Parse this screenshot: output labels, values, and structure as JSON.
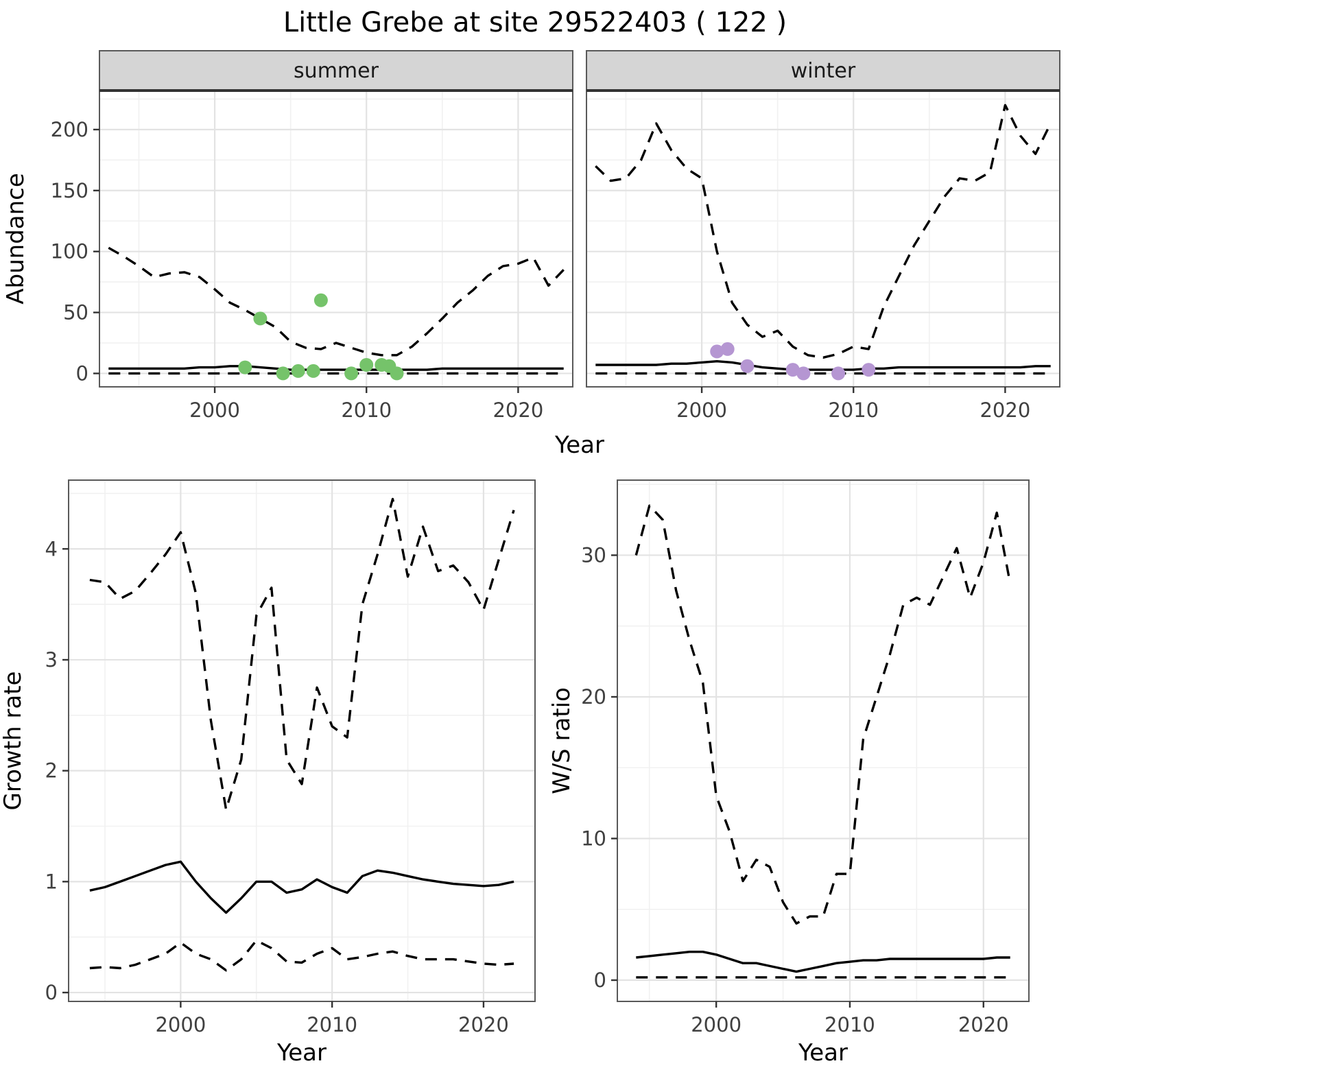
{
  "title": "Little Grebe at site 29522403 ( 122 )",
  "chart_data": [
    {
      "id": "abundance",
      "type": "line",
      "xlabel": "Year",
      "ylabel": "Abundance",
      "x": [
        1993,
        1994,
        1995,
        1996,
        1997,
        1998,
        1999,
        2000,
        2001,
        2002,
        2003,
        2004,
        2005,
        2006,
        2007,
        2008,
        2009,
        2010,
        2011,
        2012,
        2013,
        2014,
        2015,
        2016,
        2017,
        2018,
        2019,
        2020,
        2021,
        2022,
        2023
      ],
      "xlim": [
        1992.4,
        2023.6
      ],
      "ylim": [
        -11,
        232
      ],
      "xticks": [
        2000,
        2010,
        2020
      ],
      "yticks": [
        0,
        50,
        100,
        150,
        200
      ],
      "facets": [
        {
          "label": "summer",
          "series": [
            {
              "name": "upper_95ci",
              "style": "dashed",
              "y": [
                103,
                96,
                88,
                79,
                82,
                83,
                79,
                69,
                58,
                52,
                45,
                38,
                26,
                21,
                20,
                25,
                21,
                17,
                15,
                15,
                22,
                33,
                45,
                58,
                68,
                80,
                88,
                90,
                95,
                72,
                85
              ]
            },
            {
              "name": "predicted_mean",
              "style": "solid",
              "y": [
                4,
                4,
                4,
                4,
                4,
                4,
                5,
                5,
                6,
                6,
                5,
                4,
                3,
                3,
                3,
                3,
                3,
                3,
                3,
                3,
                3,
                3,
                4,
                4,
                4,
                4,
                4,
                4,
                4,
                4,
                4
              ]
            },
            {
              "name": "lower_95ci",
              "style": "dashed",
              "y": [
                0,
                0,
                0,
                0,
                0,
                0,
                0,
                0,
                0,
                0,
                0,
                0,
                0,
                0,
                0,
                0,
                0,
                0,
                0,
                0,
                0,
                0,
                0,
                0,
                0,
                0,
                0,
                0,
                0,
                0,
                0
              ]
            }
          ],
          "points": {
            "name": "observed_counts",
            "color": "#75c36a",
            "x": [
              2002,
              2003,
              2004.5,
              2005.5,
              2006.5,
              2007,
              2009,
              2010,
              2011,
              2011.5,
              2012
            ],
            "y": [
              5,
              45,
              0,
              2,
              2,
              60,
              0,
              7,
              7,
              6,
              0
            ]
          }
        },
        {
          "label": "winter",
          "series": [
            {
              "name": "upper_95ci",
              "style": "dashed",
              "y": [
                170,
                158,
                160,
                175,
                205,
                183,
                168,
                160,
                100,
                58,
                40,
                30,
                35,
                22,
                15,
                13,
                16,
                22,
                20,
                55,
                80,
                105,
                125,
                145,
                160,
                158,
                165,
                220,
                195,
                180,
                205
              ]
            },
            {
              "name": "predicted_mean",
              "style": "solid",
              "y": [
                7,
                7,
                7,
                7,
                7,
                8,
                8,
                9,
                10,
                9,
                7,
                5,
                4,
                3,
                3,
                3,
                3,
                3,
                4,
                4,
                5,
                5,
                5,
                5,
                5,
                5,
                5,
                5,
                5,
                6,
                6
              ]
            },
            {
              "name": "lower_95ci",
              "style": "dashed",
              "y": [
                0,
                0,
                0,
                0,
                0,
                0,
                0,
                0,
                0,
                0,
                0,
                0,
                0,
                0,
                0,
                0,
                0,
                0,
                0,
                0,
                0,
                0,
                0,
                0,
                0,
                0,
                0,
                0,
                0,
                0,
                0
              ]
            }
          ],
          "points": {
            "name": "observed_counts",
            "color": "#b596d2",
            "x": [
              2001,
              2001.7,
              2003,
              2006,
              2006.7,
              2009,
              2011
            ],
            "y": [
              18,
              20,
              6,
              3,
              0,
              0,
              3
            ]
          }
        }
      ]
    },
    {
      "id": "growth_rate",
      "type": "line",
      "xlabel": "Year",
      "ylabel": "Growth rate",
      "x": [
        1994,
        1995,
        1996,
        1997,
        1998,
        1999,
        2000,
        2001,
        2002,
        2003,
        2004,
        2005,
        2006,
        2007,
        2008,
        2009,
        2010,
        2011,
        2012,
        2013,
        2014,
        2015,
        2016,
        2017,
        2018,
        2019,
        2020,
        2021,
        2022
      ],
      "xlim": [
        1992.6,
        2023.4
      ],
      "ylim": [
        -0.08,
        4.62
      ],
      "xticks": [
        2000,
        2010,
        2020
      ],
      "yticks": [
        0,
        1,
        2,
        3,
        4
      ],
      "facets": [
        {
          "label": "",
          "series": [
            {
              "name": "upper_95ci",
              "style": "dashed",
              "y": [
                3.72,
                3.7,
                3.55,
                3.62,
                3.78,
                3.95,
                4.15,
                3.6,
                2.45,
                1.65,
                2.1,
                3.4,
                3.65,
                2.1,
                1.88,
                2.75,
                2.4,
                2.3,
                3.5,
                3.95,
                4.45,
                3.75,
                4.2,
                3.8,
                3.85,
                3.7,
                3.45,
                3.9,
                4.35
              ]
            },
            {
              "name": "predicted_mean",
              "style": "solid",
              "y": [
                0.92,
                0.95,
                1.0,
                1.05,
                1.1,
                1.15,
                1.18,
                1.0,
                0.85,
                0.72,
                0.85,
                1.0,
                1.0,
                0.9,
                0.93,
                1.02,
                0.95,
                0.9,
                1.05,
                1.1,
                1.08,
                1.05,
                1.02,
                1.0,
                0.98,
                0.97,
                0.96,
                0.97,
                1.0
              ]
            },
            {
              "name": "lower_95ci",
              "style": "dashed",
              "y": [
                0.22,
                0.23,
                0.22,
                0.25,
                0.3,
                0.35,
                0.45,
                0.35,
                0.3,
                0.2,
                0.3,
                0.47,
                0.4,
                0.28,
                0.27,
                0.35,
                0.4,
                0.3,
                0.32,
                0.35,
                0.37,
                0.33,
                0.3,
                0.3,
                0.3,
                0.28,
                0.26,
                0.25,
                0.26
              ]
            }
          ]
        }
      ]
    },
    {
      "id": "ws_ratio",
      "type": "line",
      "xlabel": "Year",
      "ylabel": "W/S ratio",
      "x": [
        1994,
        1995,
        1996,
        1997,
        1998,
        1999,
        2000,
        2001,
        2002,
        2003,
        2004,
        2005,
        2006,
        2007,
        2008,
        2009,
        2010,
        2011,
        2012,
        2013,
        2014,
        2015,
        2016,
        2017,
        2018,
        2019,
        2020,
        2021,
        2022
      ],
      "xlim": [
        1992.6,
        2023.4
      ],
      "ylim": [
        -1.5,
        35.3
      ],
      "xticks": [
        2000,
        2010,
        2020
      ],
      "yticks": [
        0,
        10,
        20,
        30
      ],
      "facets": [
        {
          "label": "",
          "series": [
            {
              "name": "upper_95ci",
              "style": "dashed",
              "y": [
                30.0,
                33.5,
                32.5,
                27.5,
                24.0,
                21.0,
                13.0,
                10.5,
                7.0,
                8.5,
                8.0,
                5.5,
                4.0,
                4.5,
                4.5,
                7.5,
                7.5,
                17.0,
                20.0,
                23.0,
                26.5,
                27.0,
                26.5,
                28.5,
                30.5,
                27.0,
                29.5,
                33.0,
                28.0
              ]
            },
            {
              "name": "predicted_mean",
              "style": "solid",
              "y": [
                1.6,
                1.7,
                1.8,
                1.9,
                2.0,
                2.0,
                1.8,
                1.5,
                1.2,
                1.2,
                1.0,
                0.8,
                0.6,
                0.8,
                1.0,
                1.2,
                1.3,
                1.4,
                1.4,
                1.5,
                1.5,
                1.5,
                1.5,
                1.5,
                1.5,
                1.5,
                1.5,
                1.6,
                1.6
              ]
            },
            {
              "name": "lower_95ci",
              "style": "dashed",
              "y": [
                0.2,
                0.2,
                0.2,
                0.2,
                0.2,
                0.2,
                0.2,
                0.2,
                0.2,
                0.2,
                0.2,
                0.2,
                0.2,
                0.2,
                0.2,
                0.2,
                0.2,
                0.2,
                0.2,
                0.2,
                0.2,
                0.2,
                0.2,
                0.2,
                0.2,
                0.2,
                0.2,
                0.2,
                0.2
              ]
            }
          ]
        }
      ]
    }
  ]
}
